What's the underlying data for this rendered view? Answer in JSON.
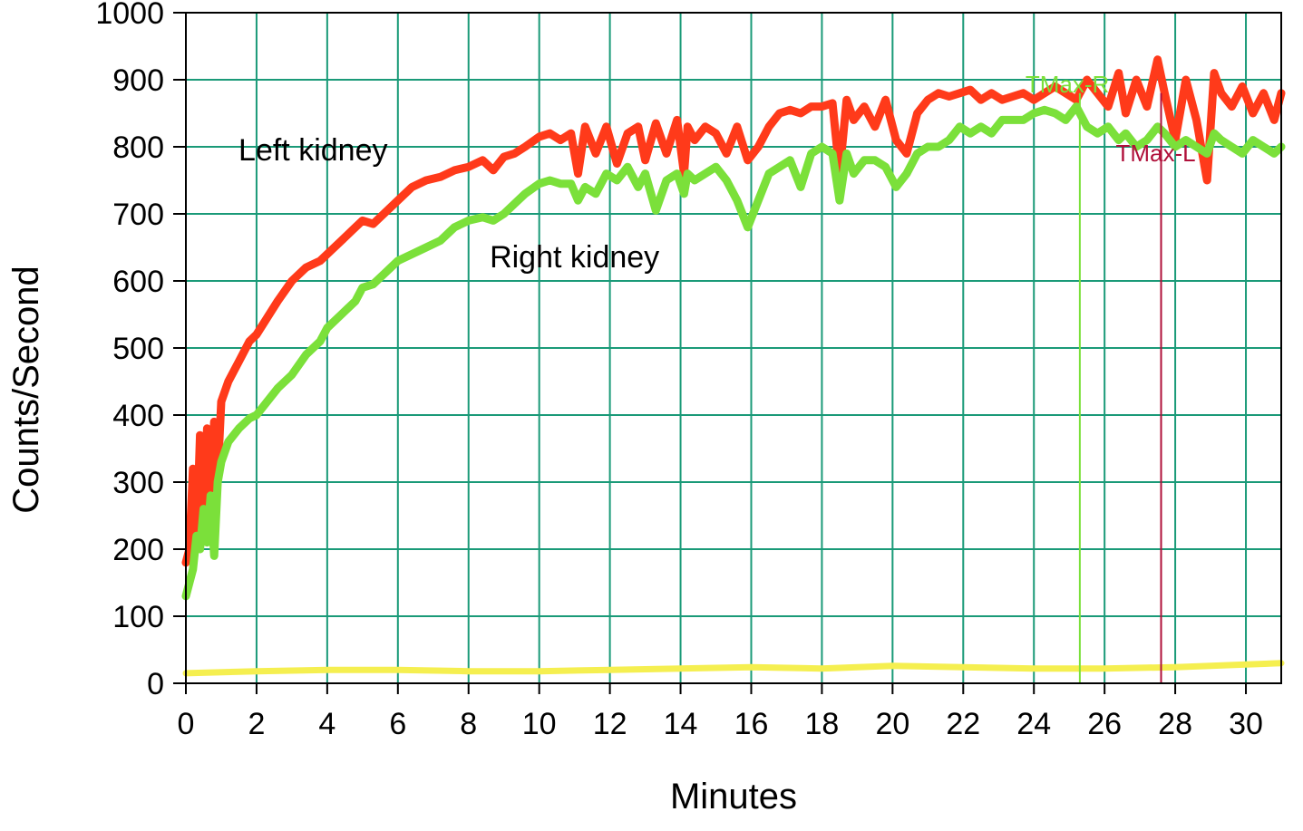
{
  "chart_data": {
    "type": "line",
    "xlabel": "Minutes",
    "ylabel": "Counts/Second",
    "xlim": [
      0,
      31
    ],
    "ylim": [
      0,
      1000
    ],
    "x_ticks": [
      0,
      2,
      4,
      6,
      8,
      10,
      12,
      14,
      16,
      18,
      20,
      22,
      24,
      26,
      28,
      30
    ],
    "y_ticks": [
      0,
      100,
      200,
      300,
      400,
      500,
      600,
      700,
      800,
      900,
      1000
    ],
    "x_gridlines": [
      0,
      2,
      4,
      6,
      8,
      10,
      12,
      14,
      16,
      18,
      20,
      22,
      24,
      26,
      28,
      30
    ],
    "y_gridlines": [
      0,
      100,
      200,
      300,
      400,
      500,
      600,
      700,
      800,
      900,
      1000
    ],
    "grid": true,
    "grid_color": "#1a9a78",
    "series": [
      {
        "name": "Left kidney",
        "color": "#ff3a1a",
        "x": [
          0.0,
          0.1,
          0.2,
          0.3,
          0.4,
          0.5,
          0.6,
          0.7,
          0.8,
          0.9,
          1.0,
          1.2,
          1.5,
          1.8,
          2.0,
          2.3,
          2.6,
          3.0,
          3.4,
          3.8,
          4.0,
          4.4,
          4.8,
          5.0,
          5.3,
          5.6,
          6.0,
          6.4,
          6.8,
          7.2,
          7.6,
          8.0,
          8.4,
          8.7,
          9.0,
          9.3,
          9.6,
          10.0,
          10.3,
          10.6,
          10.9,
          11.1,
          11.3,
          11.6,
          11.9,
          12.2,
          12.5,
          12.8,
          13.0,
          13.3,
          13.6,
          13.9,
          14.1,
          14.2,
          14.4,
          14.7,
          15.0,
          15.3,
          15.6,
          15.9,
          16.2,
          16.5,
          16.8,
          17.1,
          17.4,
          17.7,
          18.0,
          18.3,
          18.5,
          18.7,
          18.9,
          19.2,
          19.5,
          19.8,
          20.1,
          20.4,
          20.7,
          21.0,
          21.3,
          21.6,
          21.9,
          22.2,
          22.5,
          22.8,
          23.1,
          23.4,
          23.7,
          24.0,
          24.3,
          24.6,
          24.9,
          25.2,
          25.5,
          25.8,
          26.1,
          26.4,
          26.6,
          26.9,
          27.2,
          27.5,
          27.7,
          28.0,
          28.3,
          28.6,
          28.9,
          29.1,
          29.3,
          29.6,
          29.9,
          30.2,
          30.5,
          30.8,
          31.0
        ],
        "values": [
          180,
          200,
          320,
          210,
          370,
          240,
          380,
          290,
          390,
          310,
          420,
          450,
          480,
          510,
          520,
          545,
          570,
          600,
          620,
          630,
          640,
          660,
          680,
          690,
          685,
          700,
          720,
          740,
          750,
          755,
          765,
          770,
          780,
          765,
          785,
          790,
          800,
          815,
          820,
          810,
          820,
          760,
          830,
          790,
          830,
          775,
          820,
          830,
          780,
          835,
          790,
          840,
          760,
          830,
          810,
          830,
          820,
          790,
          830,
          780,
          800,
          830,
          850,
          855,
          850,
          860,
          860,
          865,
          760,
          870,
          840,
          860,
          830,
          870,
          810,
          790,
          850,
          870,
          880,
          875,
          880,
          885,
          870,
          880,
          870,
          875,
          880,
          870,
          880,
          890,
          880,
          870,
          900,
          880,
          860,
          910,
          850,
          900,
          860,
          930,
          880,
          810,
          900,
          840,
          750,
          910,
          880,
          860,
          890,
          850,
          880,
          840,
          880
        ]
      },
      {
        "name": "Right kidney",
        "color": "#7be03a",
        "x": [
          0.0,
          0.1,
          0.2,
          0.3,
          0.4,
          0.5,
          0.6,
          0.7,
          0.8,
          0.9,
          1.0,
          1.2,
          1.5,
          1.8,
          2.0,
          2.3,
          2.6,
          3.0,
          3.4,
          3.8,
          4.0,
          4.4,
          4.8,
          5.0,
          5.3,
          5.6,
          6.0,
          6.4,
          6.8,
          7.2,
          7.6,
          8.0,
          8.4,
          8.7,
          9.0,
          9.3,
          9.6,
          10.0,
          10.3,
          10.6,
          10.9,
          11.1,
          11.3,
          11.6,
          11.9,
          12.2,
          12.5,
          12.8,
          13.0,
          13.3,
          13.6,
          13.9,
          14.1,
          14.2,
          14.4,
          14.7,
          15.0,
          15.3,
          15.6,
          15.9,
          16.2,
          16.5,
          16.8,
          17.1,
          17.4,
          17.7,
          18.0,
          18.3,
          18.5,
          18.7,
          18.9,
          19.2,
          19.5,
          19.8,
          20.1,
          20.4,
          20.7,
          21.0,
          21.3,
          21.6,
          21.9,
          22.2,
          22.5,
          22.8,
          23.1,
          23.4,
          23.7,
          24.0,
          24.3,
          24.6,
          24.9,
          25.2,
          25.5,
          25.8,
          26.1,
          26.4,
          26.6,
          26.9,
          27.2,
          27.5,
          27.7,
          28.0,
          28.3,
          28.6,
          28.9,
          29.1,
          29.3,
          29.6,
          29.9,
          30.2,
          30.5,
          30.8,
          31.0
        ],
        "values": [
          130,
          150,
          170,
          220,
          200,
          260,
          210,
          280,
          190,
          300,
          330,
          360,
          380,
          395,
          400,
          420,
          440,
          460,
          490,
          510,
          530,
          550,
          570,
          590,
          595,
          610,
          630,
          640,
          650,
          660,
          680,
          690,
          695,
          690,
          700,
          715,
          730,
          745,
          750,
          745,
          745,
          720,
          740,
          730,
          760,
          750,
          770,
          740,
          760,
          705,
          750,
          760,
          730,
          760,
          750,
          760,
          770,
          750,
          720,
          680,
          720,
          760,
          770,
          780,
          740,
          790,
          800,
          790,
          720,
          790,
          760,
          780,
          780,
          770,
          740,
          760,
          790,
          800,
          800,
          810,
          830,
          820,
          830,
          820,
          840,
          840,
          840,
          850,
          855,
          850,
          840,
          860,
          830,
          820,
          830,
          810,
          820,
          800,
          810,
          830,
          820,
          800,
          810,
          800,
          790,
          820,
          810,
          800,
          790,
          810,
          800,
          790,
          800
        ]
      },
      {
        "name": "",
        "color": "#f5ef50",
        "x": [
          0,
          2,
          4,
          6,
          8,
          10,
          12,
          14,
          16,
          18,
          20,
          22,
          24,
          26,
          28,
          30,
          31
        ],
        "values": [
          15,
          18,
          20,
          20,
          18,
          18,
          20,
          22,
          24,
          22,
          26,
          24,
          22,
          22,
          24,
          28,
          30
        ]
      }
    ],
    "annotations": [
      {
        "text": "Left kidney",
        "x": 3.6,
        "y": 780
      },
      {
        "text": "Right kidney",
        "x": 11.0,
        "y": 620
      }
    ],
    "markers": [
      {
        "text": "TMax-R",
        "x": 25.3,
        "color": "#7be03a"
      },
      {
        "text": "TMax-L",
        "x": 27.6,
        "color": "#b0103a"
      }
    ]
  }
}
